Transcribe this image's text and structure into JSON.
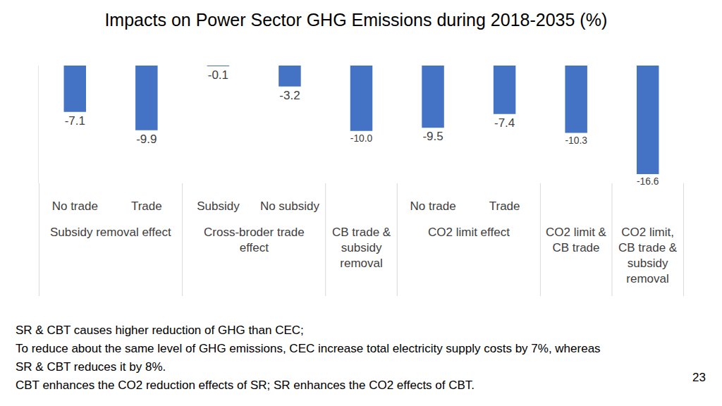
{
  "chart_data": {
    "type": "bar",
    "title": "Impacts on Power Sector GHG Emissions during 2018-2035 (%)",
    "categories": [
      "No trade",
      "Trade",
      "Subsidy",
      "No subsidy",
      null,
      "No trade",
      "Trade",
      null,
      null
    ],
    "groups": [
      "Subsidy removal effect",
      "Subsidy removal effect",
      "Cross-broder trade\neffect",
      "Cross-broder trade\neffect",
      "CB trade &\nsubsidy\nremoval",
      "CO2 limit effect",
      "CO2 limit effect",
      "CO2 limit &\nCB trade",
      "CO2 limit,\nCB trade &\nsubsidy\nremoval"
    ],
    "values": [
      -7.1,
      -9.9,
      -0.1,
      -3.2,
      -10.0,
      -9.5,
      -7.4,
      -10.3,
      -16.6
    ],
    "value_labels": [
      "-7.1",
      "-9.9",
      "-0.1",
      "-3.2",
      "-10.0",
      "-9.5",
      "-7.4",
      "-10.3",
      "-16.6"
    ],
    "color": "#4472c4",
    "ylim": [
      -18,
      0
    ],
    "yticks": [
      0
    ],
    "grid": true,
    "data_labels": true,
    "tick_labels": "x"
  },
  "notes": [
    "SR & CBT causes higher reduction of GHG than CEC;",
    "To reduce about the same level of GHG emissions, CEC increase total electricity supply costs by 7%, whereas",
    "SR & CBT reduces it by 8%.",
    "CBT enhances the CO2 reduction effects of SR; SR enhances the CO2 effects of CBT."
  ],
  "page_number": "23"
}
